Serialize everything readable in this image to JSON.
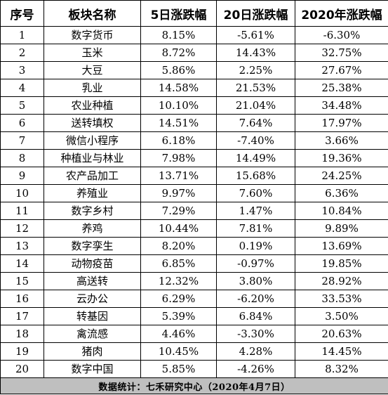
{
  "headers": [
    "序号",
    "板块名称",
    "5日涨跌幅",
    "20日涨跌幅",
    "2020年涨跌幅"
  ],
  "rows": [
    {
      "no": "1",
      "name": "数字货币",
      "d5": "8.15%",
      "d20": "-5.61%",
      "ytd": "-6.30%"
    },
    {
      "no": "2",
      "name": "玉米",
      "d5": "8.72%",
      "d20": "14.43%",
      "ytd": "32.75%"
    },
    {
      "no": "3",
      "name": "大豆",
      "d5": "5.86%",
      "d20": "2.25%",
      "ytd": "27.67%"
    },
    {
      "no": "4",
      "name": "乳业",
      "d5": "14.58%",
      "d20": "21.53%",
      "ytd": "25.38%"
    },
    {
      "no": "5",
      "name": "农业种植",
      "d5": "10.10%",
      "d20": "21.04%",
      "ytd": "34.48%"
    },
    {
      "no": "6",
      "name": "送转填权",
      "d5": "14.51%",
      "d20": "7.64%",
      "ytd": "17.97%"
    },
    {
      "no": "7",
      "name": "微信小程序",
      "d5": "6.18%",
      "d20": "-7.40%",
      "ytd": "3.66%"
    },
    {
      "no": "8",
      "name": "种植业与林业",
      "d5": "7.98%",
      "d20": "14.49%",
      "ytd": "19.36%"
    },
    {
      "no": "9",
      "name": "农产品加工",
      "d5": "13.71%",
      "d20": "15.68%",
      "ytd": "24.25%"
    },
    {
      "no": "10",
      "name": "养殖业",
      "d5": "9.97%",
      "d20": "7.60%",
      "ytd": "6.36%"
    },
    {
      "no": "11",
      "name": "数字乡村",
      "d5": "7.29%",
      "d20": "1.47%",
      "ytd": "10.84%"
    },
    {
      "no": "12",
      "name": "养鸡",
      "d5": "10.44%",
      "d20": "7.81%",
      "ytd": "9.89%"
    },
    {
      "no": "13",
      "name": "数字孪生",
      "d5": "8.20%",
      "d20": "0.19%",
      "ytd": "13.69%"
    },
    {
      "no": "14",
      "name": "动物疫苗",
      "d5": "6.85%",
      "d20": "-0.97%",
      "ytd": "19.85%"
    },
    {
      "no": "15",
      "name": "高送转",
      "d5": "12.32%",
      "d20": "3.80%",
      "ytd": "28.92%"
    },
    {
      "no": "16",
      "name": "云办公",
      "d5": "6.29%",
      "d20": "-6.20%",
      "ytd": "33.53%"
    },
    {
      "no": "17",
      "name": "转基因",
      "d5": "5.39%",
      "d20": "6.84%",
      "ytd": "3.50%"
    },
    {
      "no": "18",
      "name": "禽流感",
      "d5": "4.46%",
      "d20": "-3.30%",
      "ytd": "20.63%"
    },
    {
      "no": "19",
      "name": "猪肉",
      "d5": "10.45%",
      "d20": "4.28%",
      "ytd": "14.45%"
    },
    {
      "no": "20",
      "name": "数字中国",
      "d5": "5.85%",
      "d20": "-4.26%",
      "ytd": "8.32%"
    }
  ],
  "footer": "数据统计：七禾研究中心（2020年4月7日）",
  "colors": {
    "footer_bg": "#bfbfbf",
    "border": "#000000"
  }
}
